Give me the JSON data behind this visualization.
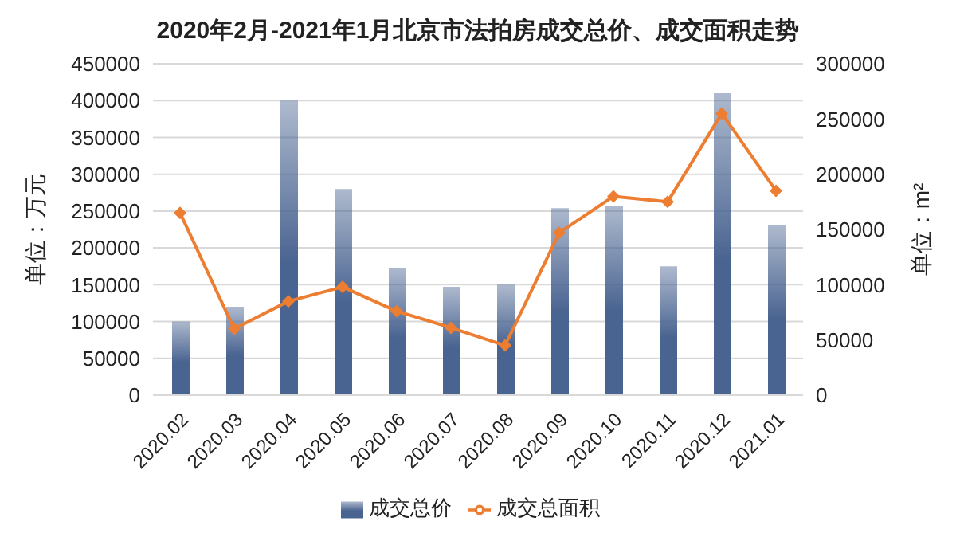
{
  "chart_data": {
    "type": "bar",
    "title": "2020年2月-2021年1月北京市法拍房成交总价、成交面积走势",
    "ylabel": "单位：万元",
    "y2label": "单位：m²",
    "categories": [
      "2020.02",
      "2020.03",
      "2020.04",
      "2020.05",
      "2020.06",
      "2020.07",
      "2020.08",
      "2020.09",
      "2020.10",
      "2020.11",
      "2020.12",
      "2021.01"
    ],
    "series": [
      {
        "name": "成交总价",
        "color": "#4a6491",
        "values": [
          100000,
          120000,
          400000,
          280000,
          173000,
          147000,
          150000,
          254000,
          257000,
          175000,
          410000,
          231000
        ]
      },
      {
        "name": "成交总面积",
        "type": "line",
        "axis": "y2",
        "color": "#ed7d31",
        "values": [
          165000,
          60000,
          85000,
          98000,
          76000,
          61000,
          45000,
          147000,
          180000,
          175000,
          255000,
          185000
        ]
      }
    ],
    "ylim": [
      0,
      450000
    ],
    "yticks": [
      0,
      50000,
      100000,
      150000,
      200000,
      250000,
      300000,
      350000,
      400000,
      450000
    ],
    "y2lim": [
      0,
      300000
    ],
    "y2ticks": [
      0,
      50000,
      100000,
      150000,
      200000,
      250000,
      300000
    ],
    "grid": "y",
    "legend": "bottom",
    "marker": "diamond",
    "line_style": "solid"
  }
}
